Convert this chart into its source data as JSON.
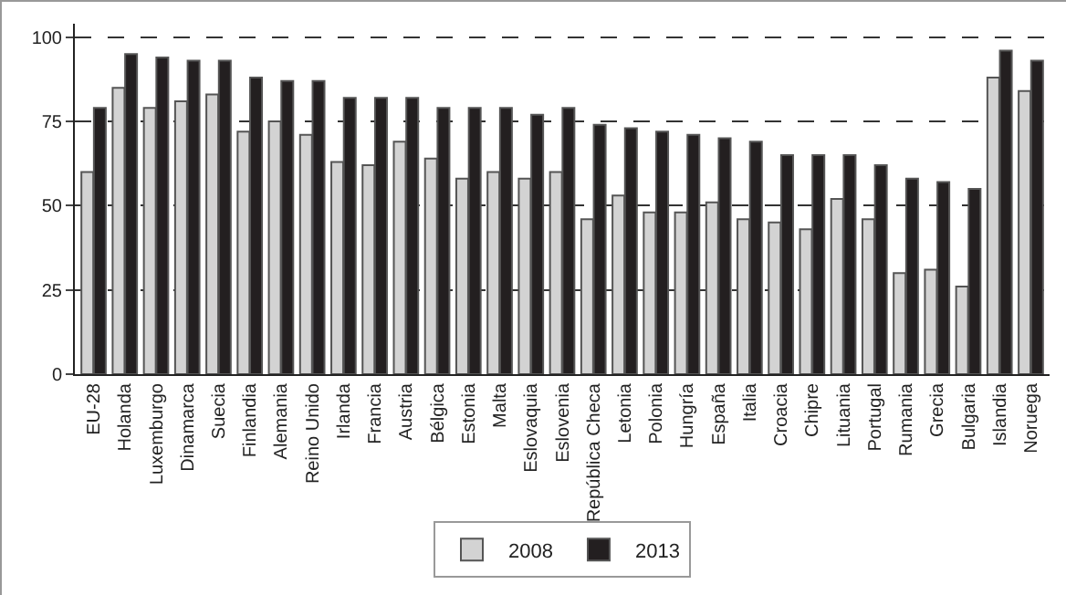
{
  "chart_data": {
    "type": "bar",
    "categories": [
      "EU-28",
      "Holanda",
      "Luxemburgo",
      "Dinamarca",
      "Suecia",
      "Finlandia",
      "Alemania",
      "Reino Unido",
      "Irlanda",
      "Francia",
      "Austria",
      "Bélgica",
      "Estonia",
      "Malta",
      "Eslovaquia",
      "Eslovenia",
      "República Checa",
      "Letonia",
      "Polonia",
      "Hungría",
      "España",
      "Italia",
      "Croacia",
      "Chipre",
      "Lituania",
      "Portugal",
      "Rumania",
      "Grecia",
      "Bulgaria",
      "Islandia",
      "Noruega"
    ],
    "series": [
      {
        "name": "2008",
        "color": "#d3d3d3",
        "values": [
          60,
          85,
          79,
          81,
          83,
          72,
          75,
          71,
          63,
          62,
          69,
          64,
          58,
          60,
          58,
          60,
          46,
          53,
          48,
          48,
          51,
          46,
          45,
          43,
          52,
          46,
          30,
          31,
          26,
          88,
          84
        ]
      },
      {
        "name": "2013",
        "color": "#231f20",
        "values": [
          79,
          95,
          94,
          93,
          93,
          88,
          87,
          87,
          82,
          82,
          82,
          79,
          79,
          79,
          77,
          79,
          74,
          73,
          72,
          71,
          70,
          69,
          65,
          65,
          65,
          62,
          58,
          57,
          55,
          96,
          93
        ]
      }
    ],
    "ylim": [
      0,
      104
    ],
    "yticks": [
      0,
      25,
      50,
      75,
      100
    ],
    "grid": "y",
    "legend": "bottom"
  }
}
